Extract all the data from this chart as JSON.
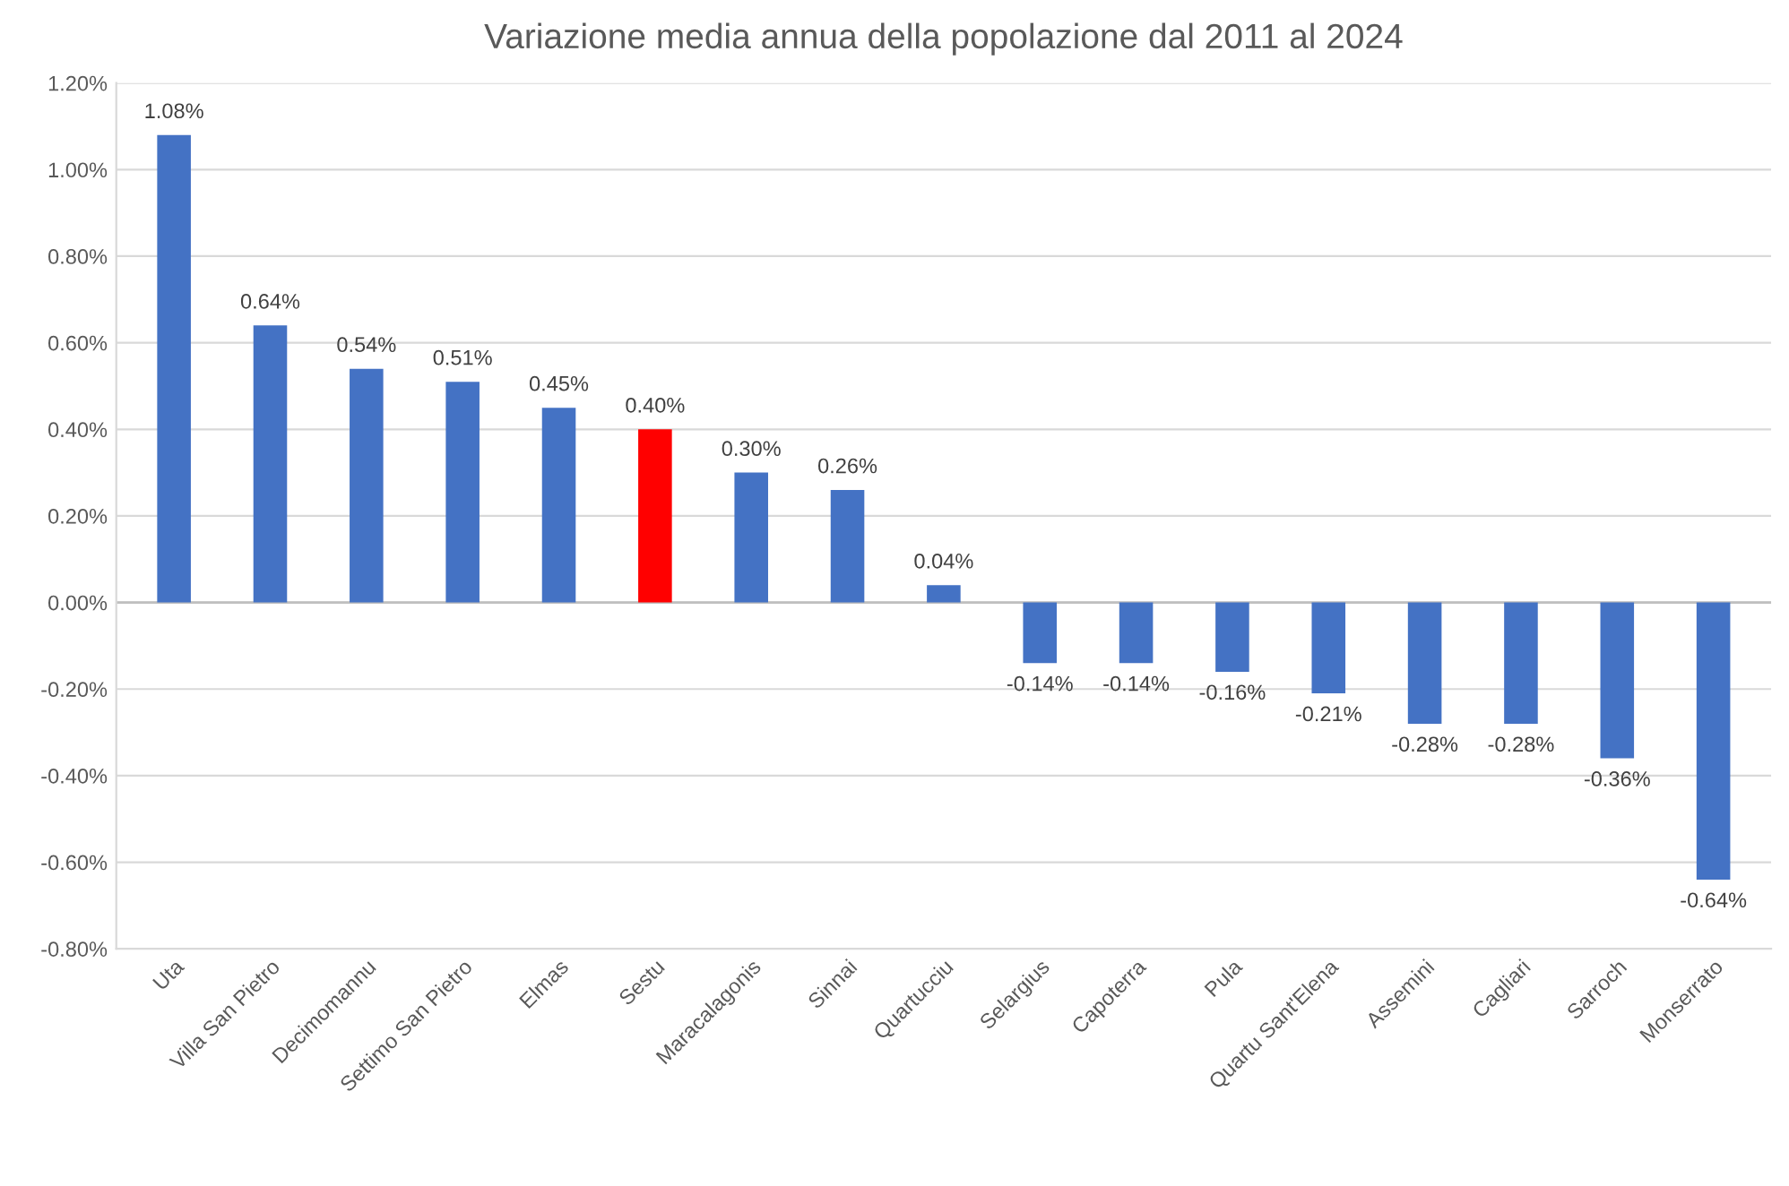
{
  "chart_data": {
    "type": "bar",
    "title": "Variazione media annua della popolazione dal 2011 al 2024",
    "categories": [
      "Uta",
      "Villa San Pietro",
      "Decimomannu",
      "Settimo San Pietro",
      "Elmas",
      "Sestu",
      "Maracalagonis",
      "Sinnai",
      "Quartucciu",
      "Selargius",
      "Capoterra",
      "Pula",
      "Quartu Sant'Elena",
      "Assemini",
      "Cagliari",
      "Sarroch",
      "Monserrato"
    ],
    "values": [
      1.08,
      0.64,
      0.54,
      0.51,
      0.45,
      0.4,
      0.3,
      0.26,
      0.04,
      -0.14,
      -0.14,
      -0.16,
      -0.21,
      -0.28,
      -0.28,
      -0.36,
      -0.64
    ],
    "value_labels": [
      "1.08%",
      "0.64%",
      "0.54%",
      "0.51%",
      "0.45%",
      "0.40%",
      "0.30%",
      "0.26%",
      "0.04%",
      "-0.14%",
      "-0.14%",
      "-0.16%",
      "-0.21%",
      "-0.28%",
      "-0.28%",
      "-0.36%",
      "-0.64%"
    ],
    "colors": [
      "#4472c4",
      "#4472c4",
      "#4472c4",
      "#4472c4",
      "#4472c4",
      "#ff0000",
      "#4472c4",
      "#4472c4",
      "#4472c4",
      "#4472c4",
      "#4472c4",
      "#4472c4",
      "#4472c4",
      "#4472c4",
      "#4472c4",
      "#4472c4",
      "#4472c4"
    ],
    "ylim": [
      -0.8,
      1.2
    ],
    "yticks": [
      {
        "value": -0.8,
        "label": "-0.80%"
      },
      {
        "value": -0.6,
        "label": "-0.60%"
      },
      {
        "value": -0.4,
        "label": "-0.40%"
      },
      {
        "value": -0.2,
        "label": "-0.20%"
      },
      {
        "value": 0,
        "label": "0.00%"
      },
      {
        "value": 0.2,
        "label": "0.20%"
      },
      {
        "value": 0.4,
        "label": "0.40%"
      },
      {
        "value": 0.6,
        "label": "0.60%"
      },
      {
        "value": 0.8,
        "label": "0.80%"
      },
      {
        "value": 1.0,
        "label": "1.00%"
      },
      {
        "value": 1.2,
        "label": "1.20%"
      }
    ],
    "grid": "y"
  }
}
